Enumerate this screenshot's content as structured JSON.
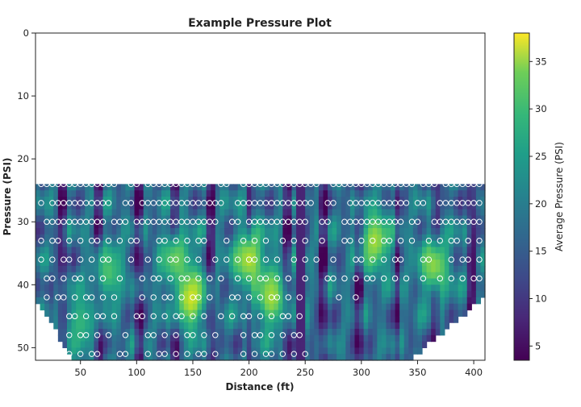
{
  "chart_data": {
    "type": "heatmap",
    "title": "Example Pressure Plot",
    "xlabel": "Distance (ft)",
    "ylabel": "Pressure (PSI)",
    "xlim": [
      10,
      410
    ],
    "ylim": [
      52,
      0
    ],
    "x_ticks": [
      50,
      100,
      150,
      200,
      250,
      300,
      350,
      400
    ],
    "y_ticks": [
      0,
      10,
      20,
      30,
      40,
      50
    ],
    "colorbar": {
      "label": "Average Pressure (PSI)",
      "range": [
        3.5,
        38
      ],
      "ticks": [
        5,
        10,
        15,
        20,
        25,
        30,
        35
      ],
      "colormap": "viridis"
    },
    "data_top": 24,
    "sample_rows": [
      24,
      27,
      30,
      33,
      36,
      39,
      42,
      45,
      48,
      51
    ],
    "sample_x_start": 15,
    "sample_x_step": 5,
    "hotspots": [
      {
        "x": 148,
        "y": 42,
        "value": 36
      },
      {
        "x": 135,
        "y": 36,
        "value": 30
      },
      {
        "x": 200,
        "y": 36,
        "value": 34
      },
      {
        "x": 220,
        "y": 42,
        "value": 33
      },
      {
        "x": 312,
        "y": 33,
        "value": 33
      },
      {
        "x": 365,
        "y": 37,
        "value": 32
      },
      {
        "x": 75,
        "y": 38,
        "value": 28
      },
      {
        "x": 50,
        "y": 46,
        "value": 26
      }
    ]
  }
}
